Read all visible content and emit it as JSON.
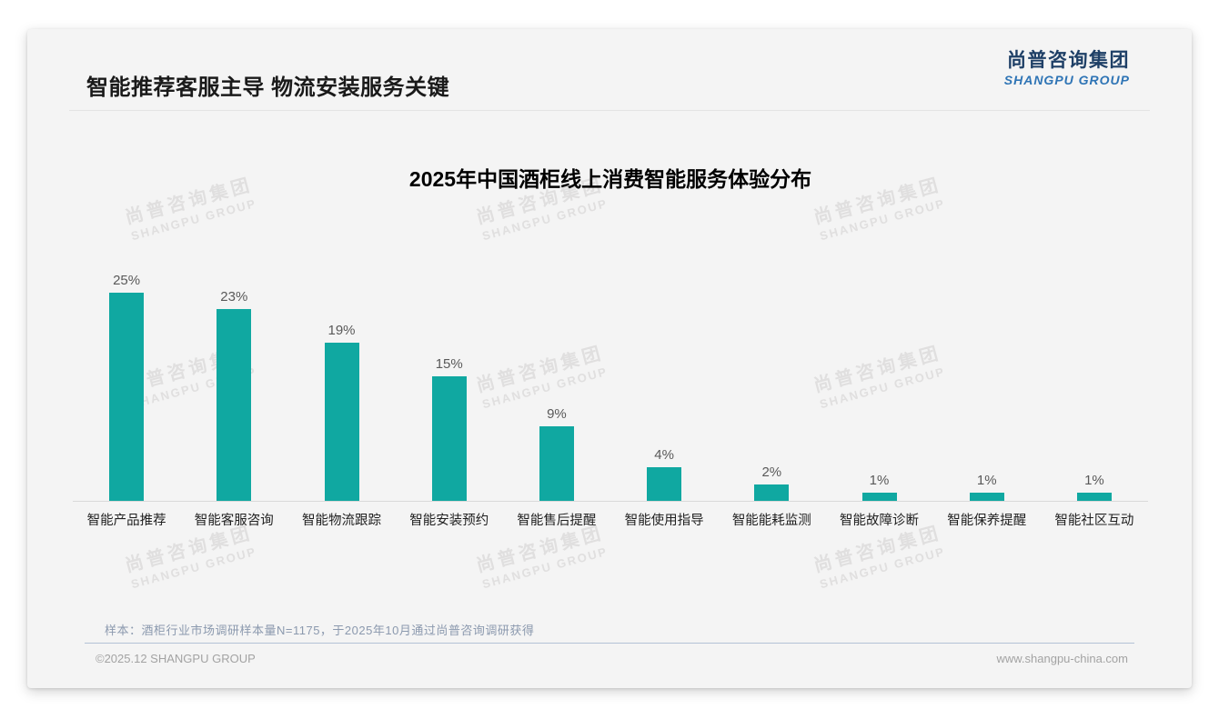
{
  "page": {
    "title": "智能推荐客服主导 物流安装服务关键",
    "logo": {
      "cn": "尚普咨询集团",
      "en": "SHANGPU GROUP"
    },
    "watermark": {
      "cn": "尚普咨询集团",
      "en": "SHANGPU GROUP"
    },
    "note": "样本：酒柜行业市场调研样本量N=1175，于2025年10月通过尚普咨询调研获得",
    "footer": {
      "left": "©2025.12 SHANGPU GROUP",
      "right": "www.shangpu-china.com"
    }
  },
  "chart_data": {
    "type": "bar",
    "title": "2025年中国酒柜线上消费智能服务体验分布",
    "categories": [
      "智能产品推荐",
      "智能客服咨询",
      "智能物流跟踪",
      "智能安装预约",
      "智能售后提醒",
      "智能使用指导",
      "智能能耗监测",
      "智能故障诊断",
      "智能保养提醒",
      "智能社区互动"
    ],
    "values": [
      25,
      23,
      19,
      15,
      9,
      4,
      2,
      1,
      1,
      1
    ],
    "unit": "%",
    "xlabel": "",
    "ylabel": "",
    "ylim": [
      0,
      27
    ],
    "grid": false,
    "legend": "none",
    "data_labels": true,
    "bar_color": "#10a8a1"
  },
  "colors": {
    "card_background": "#f4f4f4",
    "bar": "#10a8a1",
    "logo_cn": "#1e3f66",
    "logo_en": "#2e74b5",
    "note_text": "#8b99ae",
    "footer_text": "#a3a3a3"
  }
}
